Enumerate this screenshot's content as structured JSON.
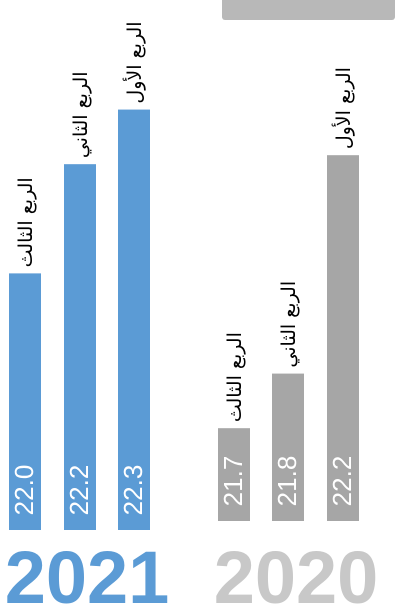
{
  "chart_data": [
    {
      "type": "bar",
      "year_label": "2021",
      "color": "#5b9bd5",
      "year_color": "#5b9bd5",
      "categories": [
        "الربع الثالث",
        "الربع الثاني",
        "الربع الأول"
      ],
      "values": [
        22.0,
        22.2,
        22.3
      ],
      "value_labels": [
        "22.0",
        "22.2",
        "22.3"
      ]
    },
    {
      "type": "bar",
      "year_label": "2020",
      "color": "#a6a6a6",
      "year_color": "#c8c8c8",
      "categories": [
        "الربع الثالث",
        "الربع الثاني",
        "الربع الأول"
      ],
      "values": [
        21.7,
        21.8,
        22.2
      ],
      "value_labels": [
        "21.7",
        "21.8",
        "22.2"
      ]
    }
  ]
}
